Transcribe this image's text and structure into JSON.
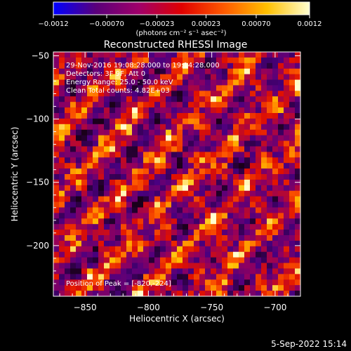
{
  "chart_data": {
    "type": "heatmap",
    "title": "Reconstructed RHESSI Image",
    "xlabel": "Heliocentric X (arcsec)",
    "ylabel": "Heliocentric Y (arcsec)",
    "xlim": [
      -875,
      -680
    ],
    "ylim": [
      -240,
      -47
    ],
    "x_ticks": [
      -850,
      -800,
      -750,
      -700
    ],
    "y_ticks": [
      -50,
      -100,
      -150,
      -200
    ],
    "x_tick_labels": [
      "−850",
      "−800",
      "−750",
      "−700"
    ],
    "y_tick_labels": [
      "−50",
      "−100",
      "−150",
      "−200"
    ],
    "colorbar": {
      "range": [
        -0.0012,
        0.0012
      ],
      "ticks": [
        -0.0012,
        -0.0007,
        -0.00023,
        0.00023,
        0.0007,
        0.0012
      ],
      "tick_labels": [
        "−0.0012",
        "−0.00070",
        "−0.00023",
        "0.00023",
        "0.00070",
        "0.0012"
      ],
      "units": "(photons cm⁻² s⁻¹ asec⁻²)",
      "colors": [
        "#0000ff",
        "#5a007a",
        "#a0006a",
        "#e00000",
        "#ff5a00",
        "#ffc000",
        "#ffffd0"
      ]
    },
    "annotations": [
      "29-Nov-2016 19:08:28.000 to 19:14:28.000",
      "Detectors: 3F 9F, Att 0",
      "Energy Range: 25.0 - 50.0 keV",
      "Clean     Total counts: 4.82E+03"
    ],
    "peak_label": "Position of Peak = [-820,-224]",
    "peak_position": [
      -820,
      -224
    ],
    "grid": false
  },
  "footer": {
    "timestamp": "5-Sep-2022 15:14"
  }
}
